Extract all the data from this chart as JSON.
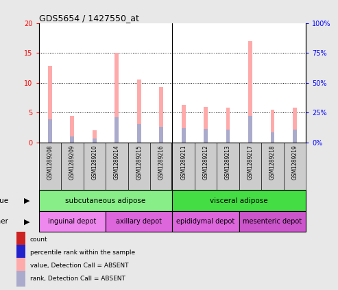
{
  "title": "GDS5654 / 1427550_at",
  "samples": [
    "GSM1289208",
    "GSM1289209",
    "GSM1289210",
    "GSM1289214",
    "GSM1289215",
    "GSM1289216",
    "GSM1289211",
    "GSM1289212",
    "GSM1289213",
    "GSM1289217",
    "GSM1289218",
    "GSM1289219"
  ],
  "pink_bars": [
    12.8,
    4.5,
    2.0,
    15.0,
    10.5,
    9.3,
    6.3,
    6.0,
    5.8,
    17.0,
    5.5,
    5.8
  ],
  "blue_bars": [
    3.9,
    1.0,
    0.7,
    4.2,
    3.1,
    2.6,
    2.4,
    2.3,
    2.2,
    4.4,
    1.7,
    2.1
  ],
  "ylim_left": [
    0,
    20
  ],
  "ylim_right": [
    0,
    100
  ],
  "yticks_left": [
    0,
    5,
    10,
    15,
    20
  ],
  "yticks_right": [
    0,
    25,
    50,
    75,
    100
  ],
  "ytick_labels_left": [
    "0",
    "5",
    "10",
    "15",
    "20"
  ],
  "ytick_labels_right": [
    "0%",
    "25%",
    "50%",
    "75%",
    "100%"
  ],
  "tissue_rows": [
    {
      "text": "subcutaneous adipose",
      "start": 0,
      "end": 6,
      "color": "#88ee88"
    },
    {
      "text": "visceral adipose",
      "start": 6,
      "end": 12,
      "color": "#44dd44"
    }
  ],
  "other_rows": [
    {
      "text": "inguinal depot",
      "start": 0,
      "end": 3,
      "color": "#ee88ee"
    },
    {
      "text": "axillary depot",
      "start": 3,
      "end": 6,
      "color": "#dd66dd"
    },
    {
      "text": "epididymal depot",
      "start": 6,
      "end": 9,
      "color": "#dd66dd"
    },
    {
      "text": "mesenteric depot",
      "start": 9,
      "end": 12,
      "color": "#cc55cc"
    }
  ],
  "legend_items": [
    {
      "label": "count",
      "color": "#cc2222"
    },
    {
      "label": "percentile rank within the sample",
      "color": "#2222cc"
    },
    {
      "label": "value, Detection Call = ABSENT",
      "color": "#ffaaaa"
    },
    {
      "label": "rank, Detection Call = ABSENT",
      "color": "#aaaacc"
    }
  ],
  "bar_width": 0.18,
  "grid_color": "black",
  "bg_color": "#e8e8e8",
  "plot_bg": "white",
  "sample_bg": "#cccccc",
  "left_tick_color": "red",
  "right_tick_color": "blue",
  "n_samples": 12,
  "tissue_separator": 5.5
}
